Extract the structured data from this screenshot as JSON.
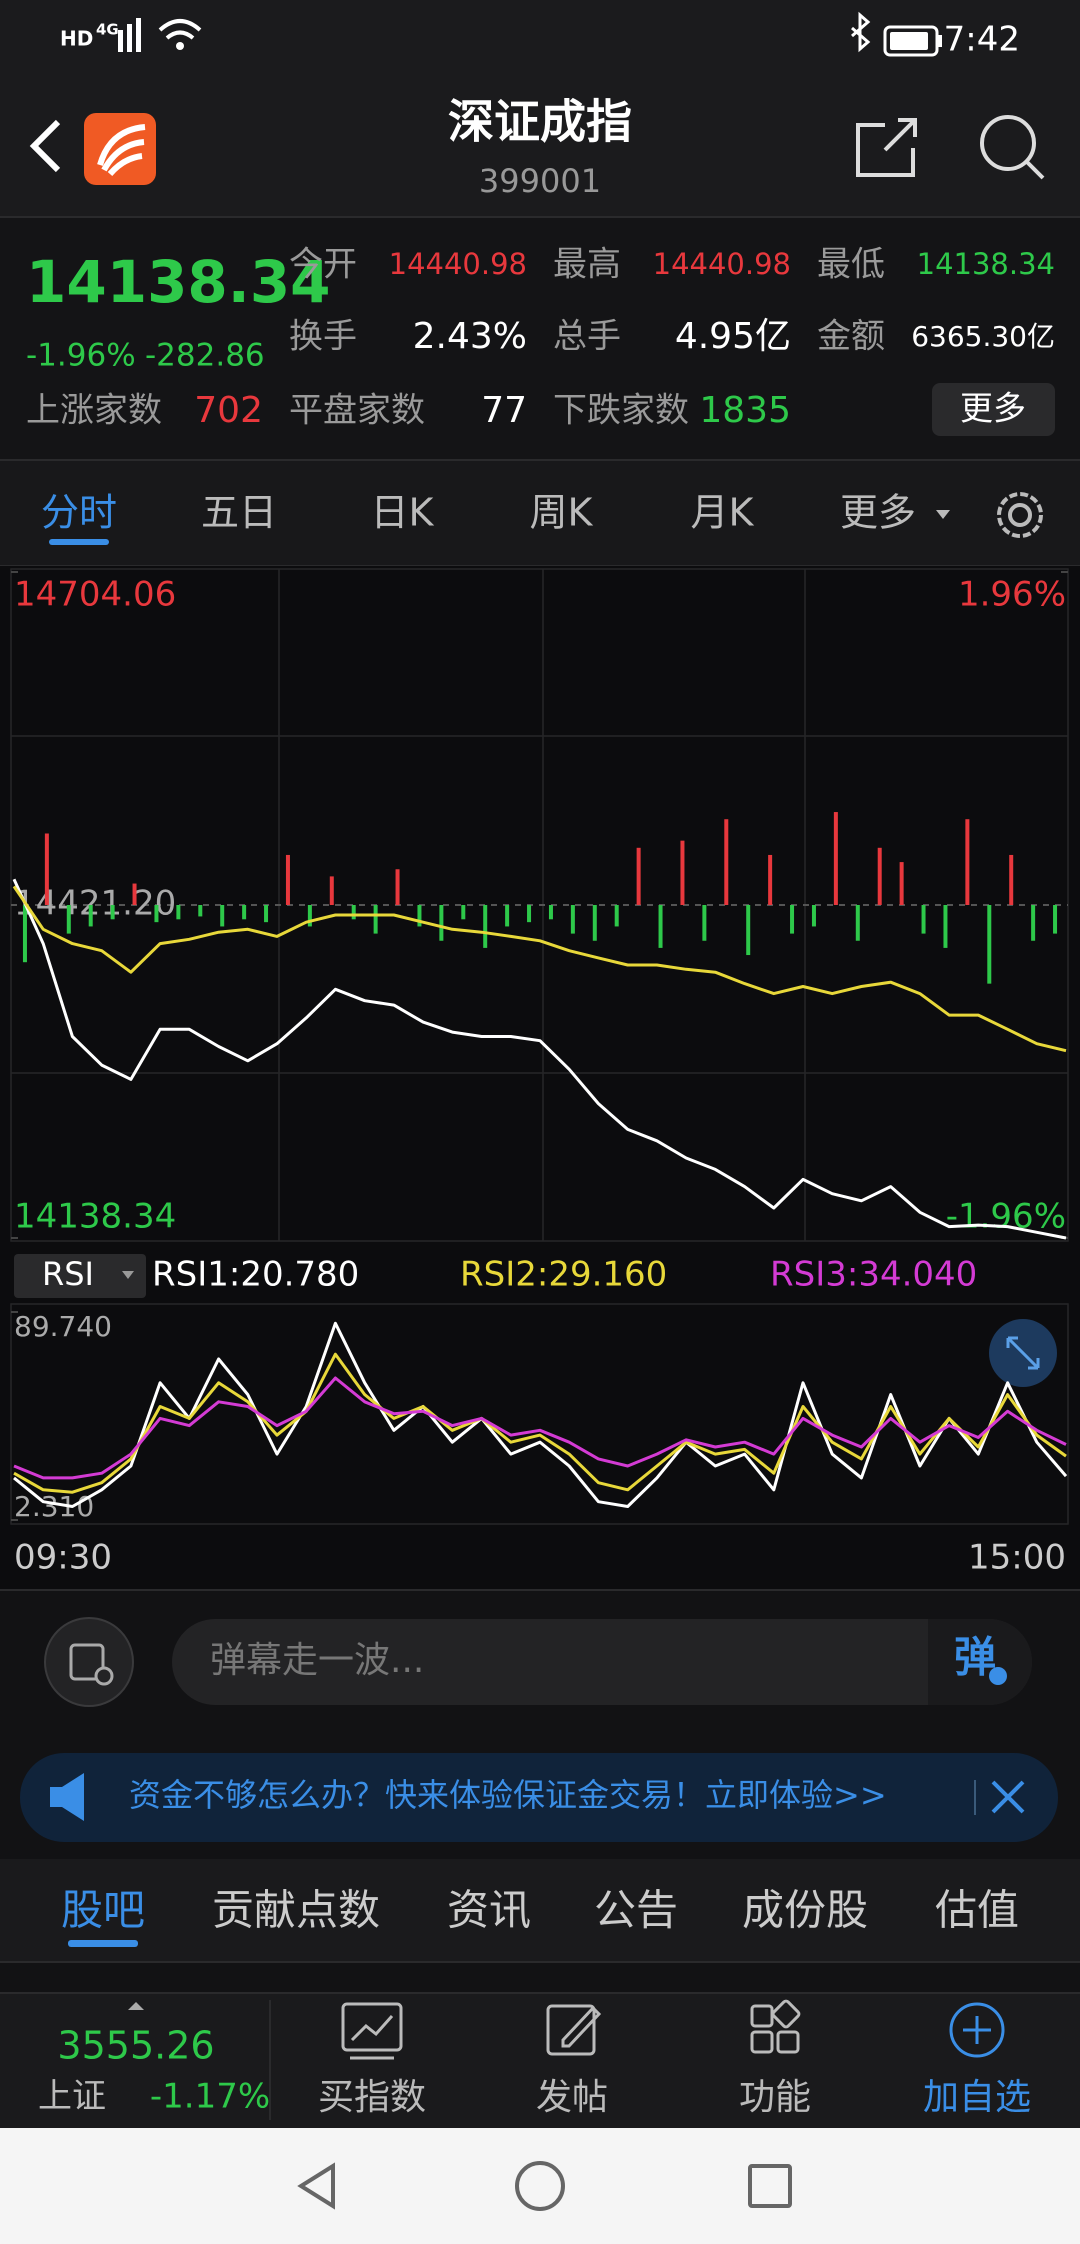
{
  "status_bar": {
    "network": [
      "HD",
      "4G"
    ],
    "time": "7:42"
  },
  "header": {
    "title": "深证成指",
    "code": "399001"
  },
  "quote": {
    "price": "14138.34",
    "change_pct": "-1.96%",
    "change": "-282.86",
    "fields": [
      {
        "label": "今开",
        "value": "14440.98",
        "color": "#e8383d"
      },
      {
        "label": "最高",
        "value": "14440.98",
        "color": "#e8383d"
      },
      {
        "label": "最低",
        "value": "14138.34",
        "color": "#2ec94a"
      },
      {
        "label": "换手",
        "value": "2.43%",
        "color": "#ffffff"
      },
      {
        "label": "总手",
        "value": "4.95亿",
        "color": "#ffffff"
      },
      {
        "label": "金额",
        "value": "6365.30亿",
        "color": "#ffffff"
      }
    ],
    "breadth": [
      {
        "label": "上涨家数",
        "value": "702",
        "color": "#e8383d"
      },
      {
        "label": "平盘家数",
        "value": "77",
        "color": "#ffffff"
      },
      {
        "label": "下跌家数",
        "value": "1835",
        "color": "#2ec94a"
      }
    ],
    "more": "更多"
  },
  "tabs": {
    "items": [
      "分时",
      "五日",
      "日K",
      "周K",
      "月K",
      "更多"
    ],
    "active": 0
  },
  "chart_data": [
    {
      "type": "line",
      "ylim": [
        14138.34,
        14704.06
      ],
      "yticks": [
        {
          "value": 14704.06,
          "label": "14704.06"
        },
        {
          "value": 14421.2,
          "label": "14421.20"
        },
        {
          "value": 14138.34,
          "label": "14138.34"
        }
      ],
      "y2lim": [
        -1.96,
        1.96
      ],
      "y2ticks": [
        {
          "value": 1.96,
          "label": "1.96%"
        },
        {
          "value": -1.96,
          "label": "-1.96%"
        }
      ],
      "x_labels": [
        "09:30",
        "15:00"
      ],
      "series": [
        {
          "color": "#ffffff",
          "values": [
            14443.1,
            14388.4,
            14309.5,
            14285.2,
            14273.1,
            14315.6,
            14315.6,
            14301.0,
            14288.9,
            14303.4,
            14325.3,
            14349.6,
            14339.9,
            14336.2,
            14321.7,
            14313.2,
            14309.5,
            14309.5,
            14305.9,
            14281.6,
            14252.5,
            14230.6,
            14220.9,
            14206.3,
            14196.6,
            14182.0,
            14163.8,
            14188.1,
            14176.0,
            14169.9,
            14182.0,
            14160.2,
            14148.0,
            14149.3,
            14148.0,
            14143.2,
            14138.34
          ]
        },
        {
          "color": "#e8d83a",
          "values": [
            14437.0,
            14400.6,
            14388.4,
            14382.4,
            14364.1,
            14388.4,
            14392.1,
            14398.1,
            14400.6,
            14394.5,
            14406.6,
            14412.7,
            14412.7,
            14412.7,
            14406.6,
            14400.6,
            14398.1,
            14394.5,
            14390.8,
            14382.4,
            14376.3,
            14370.2,
            14370.2,
            14366.6,
            14364.1,
            14354.4,
            14345.9,
            14352.0,
            14345.9,
            14352.0,
            14355.6,
            14345.9,
            14327.7,
            14327.7,
            14315.6,
            14303.4,
            14297.4
          ]
        }
      ],
      "volume": {
        "up_color": "#e8383d",
        "down_color": "#2ec94a",
        "values": [
          -40,
          50,
          -20,
          -15,
          -10,
          15,
          -12,
          -10,
          -8,
          -15,
          -10,
          -12,
          35,
          -15,
          20,
          -10,
          -20,
          25,
          -15,
          -25,
          -10,
          -30,
          -15,
          -12,
          -10,
          -20,
          -25,
          -15,
          40,
          -30,
          45,
          -25,
          60,
          -35,
          35,
          -20,
          -15,
          65,
          -25,
          40,
          30,
          -20,
          -30,
          60,
          -55,
          35,
          -25,
          -20
        ]
      }
    },
    {
      "type": "line",
      "indicator": "RSI",
      "ylim": [
        2.31,
        89.74
      ],
      "yticks": [
        {
          "value": 89.74,
          "label": "89.740"
        },
        {
          "value": 2.31,
          "label": "2.310"
        }
      ],
      "series": [
        {
          "name": "RSI1:20.780",
          "color": "#ffffff",
          "values": [
            20,
            10,
            8,
            15,
            25,
            60,
            45,
            70,
            55,
            30,
            50,
            85,
            60,
            40,
            50,
            35,
            45,
            30,
            35,
            25,
            10,
            8,
            20,
            35,
            25,
            30,
            15,
            60,
            30,
            20,
            55,
            25,
            45,
            30,
            60,
            35,
            20.78
          ]
        },
        {
          "name": "RSI2:29.160",
          "color": "#e8d83a",
          "values": [
            22,
            15,
            14,
            18,
            28,
            50,
            45,
            60,
            52,
            38,
            48,
            72,
            55,
            45,
            50,
            40,
            45,
            35,
            38,
            30,
            18,
            15,
            25,
            35,
            30,
            32,
            22,
            50,
            35,
            28,
            50,
            30,
            45,
            33,
            55,
            38,
            29.16
          ]
        },
        {
          "name": "RSI3:34.040",
          "color": "#d43bd4",
          "values": [
            25,
            20,
            20,
            22,
            30,
            45,
            42,
            52,
            50,
            42,
            48,
            62,
            52,
            47,
            48,
            42,
            45,
            38,
            40,
            35,
            28,
            25,
            30,
            36,
            33,
            35,
            30,
            45,
            38,
            33,
            45,
            35,
            42,
            37,
            48,
            40,
            34.04
          ]
        }
      ]
    }
  ],
  "danmu": {
    "placeholder": "弹幕走一波...",
    "button": "弹"
  },
  "banner": {
    "text": "资金不够怎么办？快来体验保证金交易！立即体验>>"
  },
  "section_tabs": {
    "items": [
      "股吧",
      "贡献点数",
      "资讯",
      "公告",
      "成份股",
      "估值"
    ],
    "active": 0
  },
  "index_bar": {
    "value": "3555.26",
    "name": "上证",
    "change": "-1.17%"
  },
  "actions": {
    "items": [
      "买指数",
      "发帖",
      "功能",
      "加自选"
    ],
    "highlight": 3
  }
}
